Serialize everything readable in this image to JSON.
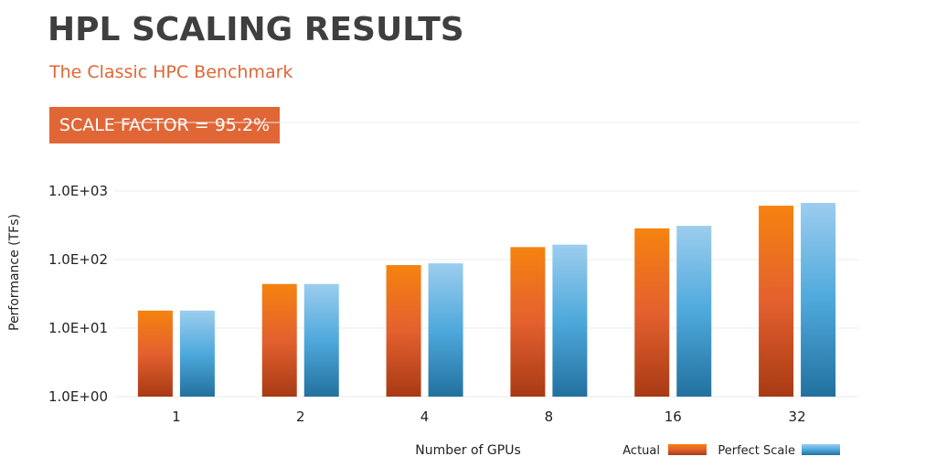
{
  "header": {
    "title": "HPL SCALING RESULTS",
    "subtitle": "The Classic HPC Benchmark",
    "badge": "SCALE FACTOR = 95.2%"
  },
  "colors": {
    "title": "#3f3f3f",
    "accent": "#e06636",
    "actual_top": "#f5830f",
    "actual_mid": "#e4602f",
    "actual_bottom": "#a83a14",
    "perfect_top": "#9ccdee",
    "perfect_mid": "#4ea9dc",
    "perfect_bottom": "#22719f",
    "grid": "#ebebeb"
  },
  "chart_data": {
    "type": "bar",
    "scale": "log",
    "xlabel": "Number of GPUs",
    "ylabel": "Performance (TFs)",
    "categories": [
      "1",
      "2",
      "4",
      "8",
      "16",
      "32"
    ],
    "ylim": [
      1,
      10000
    ],
    "y_ticks": [
      "1.0E+00",
      "1.0E+01",
      "1.0E+02",
      "1.0E+03"
    ],
    "grid": true,
    "legend_position": "bottom-right",
    "series": [
      {
        "name": "Actual",
        "values": [
          18,
          44,
          83,
          152,
          285,
          610
        ]
      },
      {
        "name": "Perfect Scale",
        "values": [
          18,
          44,
          88,
          165,
          310,
          670
        ]
      }
    ]
  }
}
